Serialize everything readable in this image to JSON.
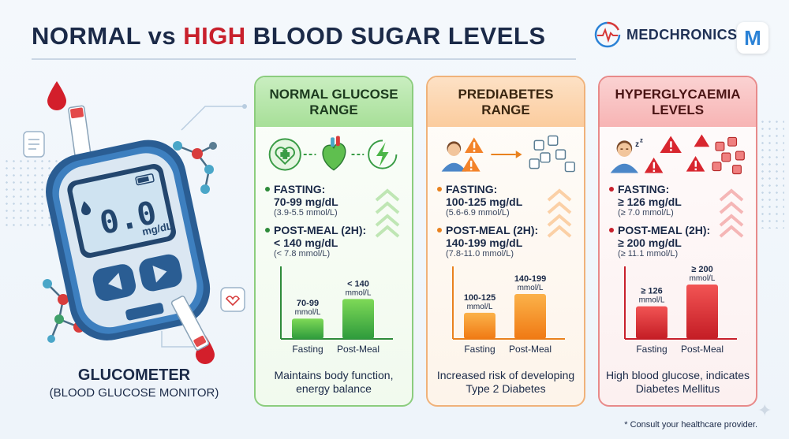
{
  "header": {
    "title_part1": "NORMAL vs ",
    "title_part2": "HIGH",
    "title_part3": " BLOOD SUGAR LEVELS",
    "brand_name": "MEDCHRONICS",
    "brand_logo_letter": "M"
  },
  "device": {
    "display_value": "0.0",
    "display_unit": "mg/dL",
    "title": "GLUCOMETER",
    "subtitle": "(BLOOD GLUCOSE MONITOR)"
  },
  "cards": [
    {
      "title": "NORMAL GLUCOSE RANGE",
      "fasting_label": "FASTING:",
      "fasting_value": "70-99 mg/dL",
      "fasting_mmol": "(3.9-5.5 mmol/L)",
      "post_label": "POST-MEAL (2H):",
      "post_value": "< 140 mg/dL",
      "post_mmol": "(< 7.8 mmol/L)",
      "chart_data": {
        "type": "bar",
        "categories": [
          "Fasting",
          "Post-Meal"
        ],
        "bar_labels": [
          [
            "70-99",
            "mmol/L"
          ],
          [
            "< 140",
            "mmol/L"
          ]
        ],
        "values": [
          0.28,
          0.55
        ]
      },
      "description": "Maintains body function, energy balance",
      "accent": "#2e8b3a",
      "bar_top": "#7ed957",
      "bar_bottom": "#2e9b3c"
    },
    {
      "title": "PREDIABETES RANGE",
      "fasting_label": "FASTING:",
      "fasting_value": "100-125 mg/dL",
      "fasting_mmol": "(5.6-6.9 mmol/L)",
      "post_label": "POST-MEAL (2H):",
      "post_value": "140-199 mg/dL",
      "post_mmol": "(7.8-11.0 mmol/L)",
      "chart_data": {
        "type": "bar",
        "categories": [
          "Fasting",
          "Post-Meal"
        ],
        "bar_labels": [
          [
            "100-125",
            "mmol/L"
          ],
          [
            "140-199",
            "mmol/L"
          ]
        ],
        "values": [
          0.36,
          0.62
        ]
      },
      "description": "Increased risk of developing Type 2 Diabetes",
      "accent": "#e9821f",
      "bar_top": "#fbb24a",
      "bar_bottom": "#f07a14"
    },
    {
      "title": "HYPERGLYCAEMIA LEVELS",
      "fasting_label": "FASTING:",
      "fasting_value": "≥ 126 mg/dL",
      "fasting_mmol": "(≥ 7.0 mmol/L)",
      "post_label": "POST-MEAL (2H):",
      "post_value": "≥ 200 mg/dL",
      "post_mmol": "(≥ 11.1 mmol/L)",
      "chart_data": {
        "type": "bar",
        "categories": [
          "Fasting",
          "Post-Meal"
        ],
        "bar_labels": [
          [
            "≥ 126",
            "mmol/L"
          ],
          [
            "≥ 200",
            "mmol/L"
          ]
        ],
        "values": [
          0.45,
          0.75
        ]
      },
      "description": "High blood glucose, indicates Diabetes Mellitus",
      "accent": "#c8202c",
      "bar_top": "#f25454",
      "bar_bottom": "#c41d25"
    }
  ],
  "footnote": "* Consult your healthcare provider."
}
